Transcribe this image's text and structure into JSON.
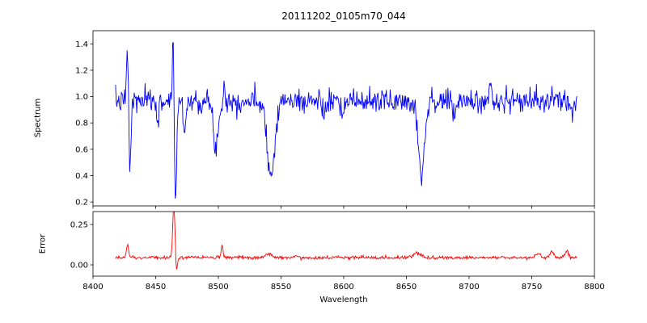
{
  "chart_data": {
    "type": "line",
    "title": "20111202_0105m70_044",
    "xlabel": "Wavelength",
    "xlim": [
      8400,
      8800
    ],
    "x_ticks": [
      8400,
      8450,
      8500,
      8550,
      8600,
      8650,
      8700,
      8750,
      8800
    ],
    "grid": false,
    "legend": "none",
    "noise_seed": 7,
    "subplots": [
      {
        "name": "spectrum",
        "ylabel": "Spectrum",
        "color": "#0000ff",
        "ylim": [
          0.17,
          1.5
        ],
        "y_ticks": [
          0.2,
          0.4,
          0.6,
          0.8,
          1.0,
          1.2,
          1.4
        ],
        "y_tick_labels": [
          "0.2",
          "0.4",
          "0.6",
          "0.8",
          "1.0",
          "1.2",
          "1.4"
        ],
        "baseline": 0.965,
        "noise_sigma": 0.045,
        "x_start": 8418,
        "x_end": 8786,
        "n_points": 720,
        "features": [
          {
            "center": 8427.5,
            "amplitude": 0.4,
            "width": 0.7
          },
          {
            "center": 8429.5,
            "amplitude": -0.52,
            "width": 0.8
          },
          {
            "center": 8452.0,
            "amplitude": -0.15,
            "width": 0.9
          },
          {
            "center": 8464.0,
            "amplitude": 0.52,
            "width": 0.7
          },
          {
            "center": 8465.8,
            "amplitude": -0.78,
            "width": 0.9
          },
          {
            "center": 8473.0,
            "amplitude": -0.22,
            "width": 1.0
          },
          {
            "center": 8498.0,
            "amplitude": -0.33,
            "width": 2.2
          },
          {
            "center": 8504.5,
            "amplitude": 0.18,
            "width": 0.6
          },
          {
            "center": 8542.0,
            "amplitude": -0.58,
            "width": 2.8
          },
          {
            "center": 8585.0,
            "amplitude": -0.1,
            "width": 1.2
          },
          {
            "center": 8598.0,
            "amplitude": -0.12,
            "width": 1.5
          },
          {
            "center": 8662.0,
            "amplitude": -0.55,
            "width": 2.4
          },
          {
            "center": 8688.0,
            "amplitude": -0.13,
            "width": 1.2
          },
          {
            "center": 8717.0,
            "amplitude": 0.14,
            "width": 0.6
          }
        ]
      },
      {
        "name": "error",
        "ylabel": "Error",
        "color": "#ff0000",
        "ylim": [
          -0.07,
          0.33
        ],
        "y_ticks": [
          0.0,
          0.25
        ],
        "y_tick_labels": [
          "0.00",
          "0.25"
        ],
        "baseline": 0.045,
        "noise_sigma": 0.005,
        "x_start": 8418,
        "x_end": 8786,
        "n_points": 720,
        "features": [
          {
            "center": 8427.5,
            "amplitude": 0.085,
            "width": 0.9
          },
          {
            "center": 8464.5,
            "amplitude": 0.33,
            "width": 0.9
          },
          {
            "center": 8466.5,
            "amplitude": -0.1,
            "width": 0.7
          },
          {
            "center": 8503.0,
            "amplitude": 0.075,
            "width": 0.8
          },
          {
            "center": 8540.0,
            "amplitude": 0.022,
            "width": 2.5
          },
          {
            "center": 8562.0,
            "amplitude": 0.012,
            "width": 1.5
          },
          {
            "center": 8658.0,
            "amplitude": 0.028,
            "width": 3.0
          },
          {
            "center": 8755.0,
            "amplitude": 0.025,
            "width": 2.0
          },
          {
            "center": 8766.0,
            "amplitude": 0.038,
            "width": 1.5
          },
          {
            "center": 8778.0,
            "amplitude": 0.042,
            "width": 1.5
          }
        ]
      }
    ]
  }
}
